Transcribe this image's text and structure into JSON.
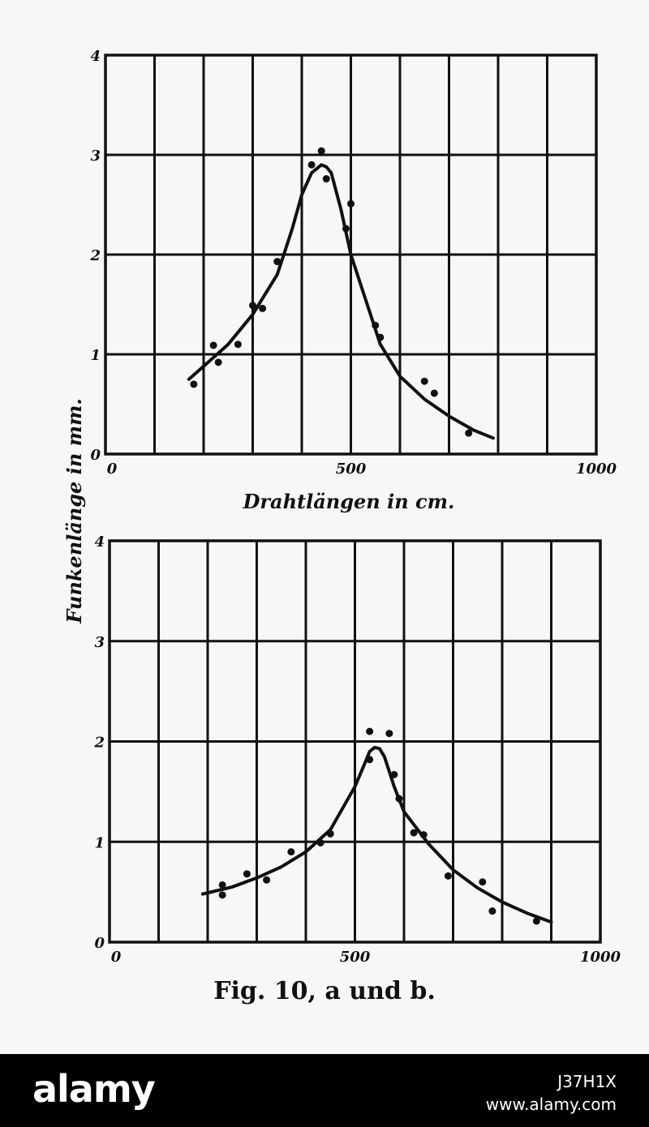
{
  "chart_data": [
    {
      "type": "scatter",
      "title": "",
      "xlabel": "Drahtlängen in cm.",
      "ylabel": "Funkenlänge in mm.",
      "xlim": [
        0,
        1000
      ],
      "ylim": [
        0,
        4
      ],
      "grid": true,
      "x_tick_labels": [
        "0",
        "500",
        "1000"
      ],
      "x_tick_values": [
        0,
        500,
        1000
      ],
      "y_tick_labels": [
        "0",
        "1",
        "2",
        "3",
        "4"
      ],
      "y_tick_values": [
        0,
        1,
        2,
        3,
        4
      ],
      "points": {
        "x": [
          180,
          220,
          230,
          270,
          300,
          320,
          350,
          420,
          440,
          450,
          490,
          500,
          550,
          560,
          650,
          670,
          740
        ],
        "y": [
          0.7,
          1.09,
          0.92,
          1.1,
          1.49,
          1.46,
          1.93,
          2.9,
          3.04,
          2.76,
          2.26,
          2.51,
          1.29,
          1.17,
          0.73,
          0.61,
          0.21
        ]
      },
      "curve": {
        "x": [
          170,
          200,
          250,
          300,
          350,
          380,
          400,
          420,
          440,
          450,
          460,
          480,
          500,
          530,
          560,
          600,
          650,
          700,
          750,
          790
        ],
        "y": [
          0.75,
          0.88,
          1.1,
          1.4,
          1.8,
          2.25,
          2.6,
          2.82,
          2.9,
          2.88,
          2.82,
          2.45,
          2.0,
          1.55,
          1.1,
          0.78,
          0.55,
          0.38,
          0.24,
          0.16
        ]
      }
    },
    {
      "type": "scatter",
      "title": "",
      "xlabel": "",
      "ylabel": "Funkenlänge in mm.",
      "xlim": [
        0,
        1000
      ],
      "ylim": [
        0,
        4
      ],
      "grid": true,
      "x_tick_labels": [
        "0",
        "500",
        "1000"
      ],
      "x_tick_values": [
        0,
        500,
        1000
      ],
      "y_tick_labels": [
        "0",
        "1",
        "2",
        "3",
        "4"
      ],
      "y_tick_values": [
        0,
        1,
        2,
        3,
        4
      ],
      "points": {
        "x": [
          230,
          230,
          280,
          320,
          370,
          430,
          450,
          530,
          530,
          570,
          580,
          590,
          620,
          640,
          690,
          760,
          780,
          870
        ],
        "y": [
          0.57,
          0.47,
          0.68,
          0.62,
          0.9,
          0.99,
          1.08,
          2.1,
          1.82,
          2.08,
          1.67,
          1.43,
          1.09,
          1.07,
          0.66,
          0.6,
          0.31,
          0.21
        ]
      },
      "curve": {
        "x": [
          190,
          250,
          300,
          350,
          400,
          450,
          500,
          520,
          530,
          540,
          550,
          560,
          580,
          600,
          650,
          700,
          750,
          800,
          850,
          900
        ],
        "y": [
          0.48,
          0.55,
          0.64,
          0.75,
          0.9,
          1.12,
          1.55,
          1.78,
          1.9,
          1.94,
          1.93,
          1.85,
          1.55,
          1.3,
          0.98,
          0.72,
          0.54,
          0.4,
          0.29,
          0.2
        ]
      }
    }
  ],
  "figure": {
    "caption": "Fig. 10, a und b.",
    "ink_color": "#111111",
    "paper_color": "#f7f7f5"
  },
  "watermark": {
    "logo": "alamy",
    "image_id": "J37H1X",
    "site": "www.alamy.com"
  }
}
